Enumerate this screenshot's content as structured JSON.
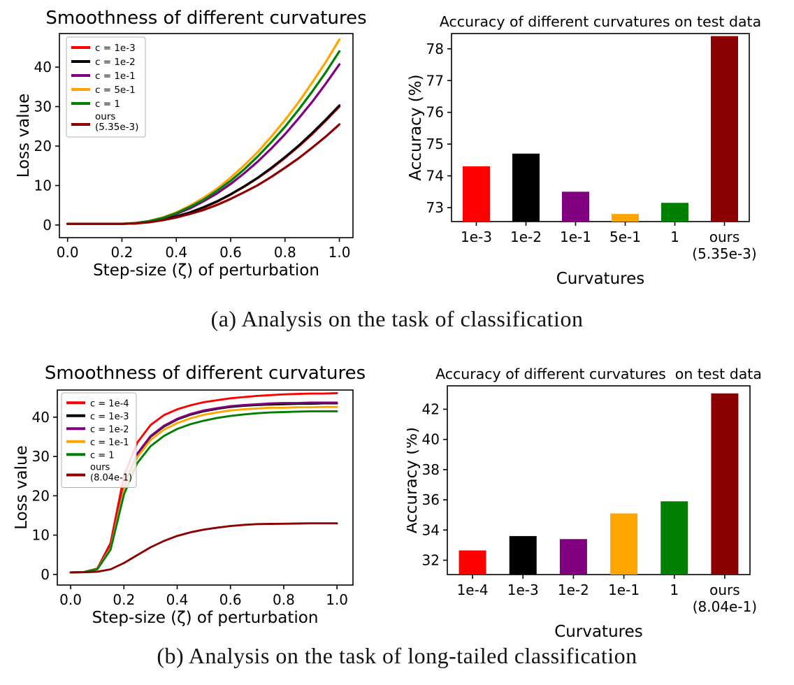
{
  "captions": {
    "a": "(a) Analysis on the task of classification",
    "b": "(b) Analysis on the task of long-tailed classification"
  },
  "palette": {
    "red": "#ff0000",
    "black": "#000000",
    "purple": "#800080",
    "orange": "#ffa500",
    "green": "#008000",
    "darkred": "#8b0000"
  },
  "chart_data": [
    {
      "id": "line_a",
      "type": "line",
      "title": "Smoothness of different curvatures",
      "xlabel": "Step-size (ζ) of perturbation",
      "ylabel": "Loss value",
      "xlim": [
        -0.03,
        1.05
      ],
      "ylim": [
        -3.2,
        48.5
      ],
      "xticks": [
        0.0,
        0.2,
        0.4,
        0.6,
        0.8,
        1.0
      ],
      "xtick_labels": [
        "0.0",
        "0.2",
        "0.4",
        "0.6",
        "0.8",
        "1.0"
      ],
      "yticks": [
        0,
        10,
        20,
        30,
        40
      ],
      "grid": false,
      "legend_position": "upper left",
      "x": [
        0,
        0.05,
        0.1,
        0.15,
        0.2,
        0.25,
        0.3,
        0.35,
        0.4,
        0.45,
        0.5,
        0.55,
        0.6,
        0.65,
        0.7,
        0.75,
        0.8,
        0.85,
        0.9,
        0.95,
        1.0
      ],
      "series": [
        {
          "label": "c = 1e-3",
          "color": "red",
          "values": [
            0.3,
            0.3,
            0.3,
            0.3,
            0.3,
            0.4,
            0.8,
            1.3,
            2.1,
            3.1,
            4.4,
            5.9,
            7.7,
            9.7,
            11.9,
            14.3,
            17.0,
            19.9,
            23.0,
            26.4,
            30.0
          ]
        },
        {
          "label": "c = 1e-2",
          "color": "black",
          "values": [
            0.3,
            0.3,
            0.3,
            0.3,
            0.3,
            0.4,
            0.8,
            1.4,
            2.2,
            3.2,
            4.5,
            6.0,
            7.8,
            9.8,
            12.0,
            14.5,
            17.2,
            20.1,
            23.3,
            26.7,
            30.3
          ]
        },
        {
          "label": "c = 1e-1",
          "color": "purple",
          "values": [
            0.3,
            0.3,
            0.3,
            0.3,
            0.3,
            0.5,
            0.9,
            1.7,
            2.8,
            4.2,
            6.0,
            8.0,
            10.4,
            13.1,
            16.1,
            19.4,
            23.0,
            27.0,
            31.2,
            35.8,
            40.7
          ]
        },
        {
          "label": "c = 5e-1",
          "color": "orange",
          "values": [
            0.3,
            0.3,
            0.3,
            0.3,
            0.3,
            0.5,
            1.0,
            1.9,
            3.2,
            4.9,
            6.9,
            9.2,
            12.0,
            15.1,
            18.5,
            22.4,
            26.6,
            31.1,
            36.1,
            41.3,
            47.0
          ]
        },
        {
          "label": "c = 1",
          "color": "green",
          "values": [
            0.3,
            0.3,
            0.3,
            0.3,
            0.3,
            0.5,
            1.0,
            1.8,
            3.0,
            4.6,
            6.4,
            8.7,
            11.2,
            14.1,
            17.4,
            21.0,
            24.9,
            29.2,
            33.8,
            38.7,
            44.0
          ]
        },
        {
          "label": "ours\n(5.35e-3)",
          "color": "darkred",
          "values": [
            0.3,
            0.3,
            0.3,
            0.3,
            0.3,
            0.4,
            0.7,
            1.2,
            1.9,
            2.8,
            3.8,
            5.1,
            6.6,
            8.3,
            10.1,
            12.2,
            14.5,
            16.9,
            19.6,
            22.4,
            25.5
          ]
        }
      ]
    },
    {
      "id": "bar_a",
      "type": "bar",
      "title": "Accuracy of different curvatures on test data",
      "xlabel": "Curvatures",
      "ylabel": "Accuracy (%)",
      "categories": [
        "1e-3",
        "1e-2",
        "1e-1",
        "5e-1",
        "1",
        "ours\n(5.35e-3)"
      ],
      "values": [
        74.3,
        74.7,
        73.5,
        72.8,
        73.15,
        78.4
      ],
      "bar_colors": [
        "red",
        "black",
        "purple",
        "orange",
        "green",
        "darkred"
      ],
      "ylim": [
        72.56,
        78.48
      ],
      "yticks": [
        73,
        74,
        75,
        76,
        77,
        78
      ],
      "grid": false
    },
    {
      "id": "line_b",
      "type": "line",
      "title": "Smoothness of different curvatures",
      "xlabel": "Step-size (ζ) of perturbation",
      "ylabel": "Loss value",
      "xlim": [
        -0.05,
        1.06
      ],
      "ylim": [
        -2.7,
        46.9
      ],
      "xticks": [
        0.0,
        0.2,
        0.4,
        0.6,
        0.8,
        1.0
      ],
      "xtick_labels": [
        "0.0",
        "0.2",
        "0.4",
        "0.6",
        "0.8",
        "1.0"
      ],
      "yticks": [
        0,
        10,
        20,
        30,
        40
      ],
      "grid": false,
      "legend_position": "upper left",
      "x": [
        0,
        0.05,
        0.1,
        0.15,
        0.2,
        0.25,
        0.3,
        0.35,
        0.4,
        0.45,
        0.5,
        0.55,
        0.6,
        0.65,
        0.7,
        0.75,
        0.8,
        0.85,
        0.9,
        0.95,
        1.0
      ],
      "series": [
        {
          "label": "c = 1e-4",
          "color": "red",
          "values": [
            0.5,
            0.6,
            1.5,
            8.0,
            25.0,
            33.5,
            38.0,
            40.5,
            42.0,
            43.0,
            43.8,
            44.3,
            44.8,
            45.1,
            45.4,
            45.6,
            45.8,
            45.9,
            46.0,
            46.0,
            46.1
          ]
        },
        {
          "label": "c = 1e-3",
          "color": "black",
          "values": [
            0.5,
            0.6,
            1.4,
            7.0,
            22.0,
            30.5,
            35.0,
            37.6,
            39.4,
            40.6,
            41.5,
            42.1,
            42.6,
            42.9,
            43.1,
            43.2,
            43.3,
            43.4,
            43.4,
            43.5,
            43.5
          ]
        },
        {
          "label": "c = 1e-2",
          "color": "purple",
          "values": [
            0.5,
            0.6,
            1.4,
            7.1,
            22.2,
            30.7,
            35.2,
            37.8,
            39.6,
            40.8,
            41.7,
            42.3,
            42.8,
            43.1,
            43.3,
            43.5,
            43.6,
            43.6,
            43.7,
            43.7,
            43.7
          ]
        },
        {
          "label": "c = 1e-1",
          "color": "orange",
          "values": [
            0.5,
            0.6,
            1.35,
            6.7,
            21.5,
            29.8,
            34.2,
            36.8,
            38.5,
            39.7,
            40.6,
            41.2,
            41.7,
            42.0,
            42.2,
            42.4,
            42.4,
            42.5,
            42.5,
            42.6,
            42.6
          ]
        },
        {
          "label": "c = 1",
          "color": "green",
          "values": [
            0.5,
            0.6,
            1.3,
            6.3,
            20.3,
            28.3,
            32.6,
            35.2,
            37.0,
            38.2,
            39.1,
            39.8,
            40.3,
            40.7,
            41.0,
            41.2,
            41.3,
            41.4,
            41.5,
            41.5,
            41.5
          ]
        },
        {
          "label": "ours\n(8.04e-1)",
          "color": "darkred",
          "values": [
            0.5,
            0.55,
            0.7,
            1.3,
            2.9,
            4.9,
            6.9,
            8.5,
            9.8,
            10.7,
            11.4,
            11.9,
            12.3,
            12.6,
            12.8,
            12.85,
            12.9,
            12.95,
            13.0,
            13.0,
            13.0
          ]
        }
      ]
    },
    {
      "id": "bar_b",
      "type": "bar",
      "title": "Accuracy of different curvatures  on test data",
      "xlabel": "Curvatures",
      "ylabel": "Accuracy (%)",
      "categories": [
        "1e-4",
        "1e-3",
        "1e-2",
        "1e-1",
        "1",
        "ours\n(8.04e-1)"
      ],
      "values": [
        32.65,
        33.6,
        33.4,
        35.1,
        35.9,
        43.05
      ],
      "bar_colors": [
        "red",
        "black",
        "purple",
        "orange",
        "green",
        "darkred"
      ],
      "ylim": [
        31.05,
        43.55
      ],
      "yticks": [
        32,
        34,
        36,
        38,
        40,
        42
      ],
      "grid": false
    }
  ]
}
